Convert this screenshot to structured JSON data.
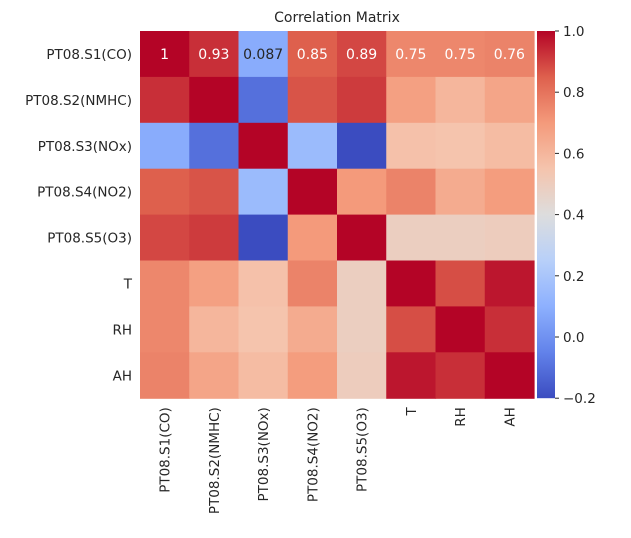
{
  "chart_data": {
    "type": "heatmap",
    "title": "Correlation Matrix",
    "xlabel": "",
    "ylabel": "",
    "rows": [
      "PT08.S1(CO)",
      "PT08.S2(NMHC)",
      "PT08.S3(NOx)",
      "PT08.S4(NO2)",
      "PT08.S5(O3)",
      "T",
      "RH",
      "AH"
    ],
    "columns": [
      "PT08.S1(CO)",
      "PT08.S2(NMHC)",
      "PT08.S3(NOx)",
      "PT08.S4(NO2)",
      "PT08.S5(O3)",
      "T",
      "RH",
      "AH"
    ],
    "values": [
      [
        1,
        0.93,
        0.087,
        0.85,
        0.89,
        0.75,
        0.75,
        0.76
      ],
      [
        0.93,
        1,
        -0.1,
        0.87,
        0.91,
        0.68,
        0.6,
        0.66
      ],
      [
        0.087,
        -0.1,
        1,
        0.15,
        -0.2,
        0.56,
        0.55,
        0.58
      ],
      [
        0.85,
        0.87,
        0.15,
        1,
        0.7,
        0.76,
        0.64,
        0.69
      ],
      [
        0.89,
        0.91,
        -0.2,
        0.7,
        1,
        0.49,
        0.49,
        0.5
      ],
      [
        0.75,
        0.68,
        0.56,
        0.76,
        0.49,
        1,
        0.88,
        0.97
      ],
      [
        0.75,
        0.6,
        0.55,
        0.64,
        0.49,
        0.88,
        1,
        0.93
      ],
      [
        0.76,
        0.66,
        0.58,
        0.69,
        0.5,
        0.97,
        0.93,
        1
      ]
    ],
    "annotated_row": 0,
    "annotations": [
      "1",
      "0.93",
      "0.087",
      "0.85",
      "0.89",
      "0.75",
      "0.75",
      "0.76"
    ],
    "colormap": "coolwarm",
    "vmin": -0.2,
    "vmax": 1.0,
    "colorbar_ticks": [
      "1.0",
      "0.8",
      "0.6",
      "0.4",
      "0.2",
      "0.0",
      "−0.2"
    ],
    "colorbar_tick_values": [
      1.0,
      0.8,
      0.6,
      0.4,
      0.2,
      0.0,
      -0.2
    ],
    "grid": false
  }
}
